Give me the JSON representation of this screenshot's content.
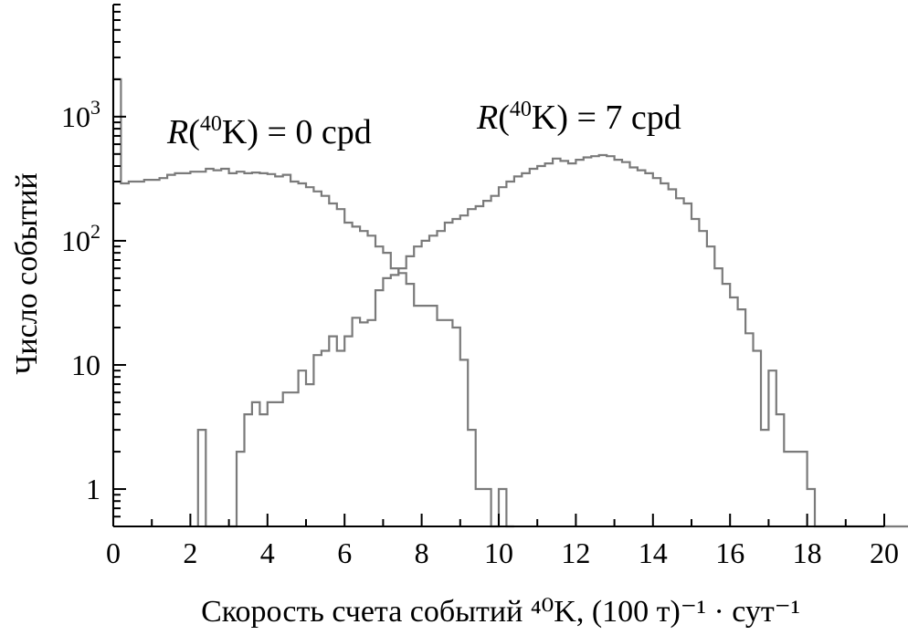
{
  "chart_data": {
    "type": "histogram",
    "xlabel": "Скорость счета событий ⁴⁰K, (100 т)⁻¹ · сут⁻¹",
    "ylabel": "Число событий",
    "xlim": [
      0,
      20
    ],
    "ylim": [
      0.5,
      8000
    ],
    "yscale": "log",
    "grid": false,
    "x_ticks": [
      "0",
      "2",
      "4",
      "6",
      "8",
      "10",
      "12",
      "14",
      "16",
      "18",
      "20"
    ],
    "y_ticks": [
      {
        "value": 1,
        "label": "1",
        "sup": ""
      },
      {
        "value": 10,
        "label": "10",
        "sup": ""
      },
      {
        "value": 100,
        "label": "10",
        "sup": "2"
      },
      {
        "value": 1000,
        "label": "10",
        "sup": "3"
      }
    ],
    "bin_width": 0.2,
    "series": [
      {
        "name": "R(⁴⁰K) = 0 cpd",
        "bin_start": 0,
        "counts": [
          2000,
          290,
          300,
          300,
          310,
          310,
          320,
          340,
          350,
          350,
          360,
          360,
          380,
          370,
          380,
          350,
          360,
          350,
          355,
          350,
          345,
          330,
          340,
          300,
          290,
          270,
          250,
          230,
          200,
          180,
          140,
          130,
          120,
          110,
          90,
          80,
          60,
          55,
          45,
          30,
          30,
          30,
          23,
          23,
          20,
          11,
          3,
          1,
          1,
          0.5,
          1,
          0.5
        ]
      },
      {
        "name": "R(⁴⁰K) = 7 cpd",
        "bin_start": 2.2,
        "counts": [
          3,
          0.5,
          0.5,
          0.5,
          0.5,
          2,
          4,
          5,
          4,
          5,
          5,
          6,
          6,
          9,
          7,
          12,
          13,
          17,
          13,
          17,
          24,
          22,
          23,
          40,
          50,
          53,
          60,
          75,
          90,
          100,
          110,
          120,
          140,
          150,
          160,
          180,
          190,
          210,
          230,
          270,
          300,
          330,
          350,
          380,
          400,
          420,
          460,
          440,
          420,
          450,
          470,
          480,
          490,
          480,
          450,
          430,
          390,
          370,
          350,
          320,
          290,
          260,
          220,
          200,
          150,
          120,
          90,
          60,
          45,
          35,
          28,
          18,
          13,
          3,
          9,
          4,
          2,
          2,
          2,
          1,
          0.5,
          0.5,
          0.5,
          0.5,
          0.5,
          0.5,
          0.5,
          0.5,
          0.5,
          0.5,
          0.5,
          0.5,
          0.5,
          0.5
        ]
      }
    ]
  }
}
